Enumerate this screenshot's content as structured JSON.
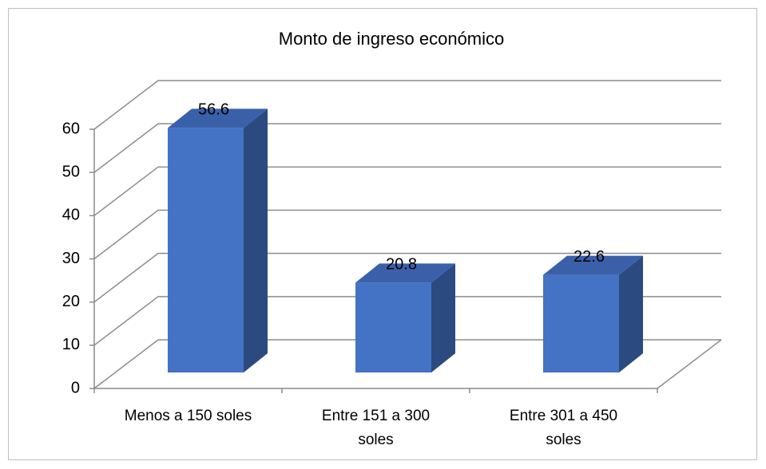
{
  "chart_data": {
    "type": "bar3d",
    "title": "Monto de ingreso económico",
    "categories": [
      "Menos a 150 soles",
      "Entre 151 a 300 soles",
      "Entre 301 a 450 soles"
    ],
    "values": [
      56.6,
      20.8,
      22.6
    ],
    "color": "#4472c4",
    "ylim": [
      0,
      60
    ],
    "yticks": [
      0,
      10,
      20,
      30,
      40,
      50,
      60
    ],
    "grid": true
  }
}
